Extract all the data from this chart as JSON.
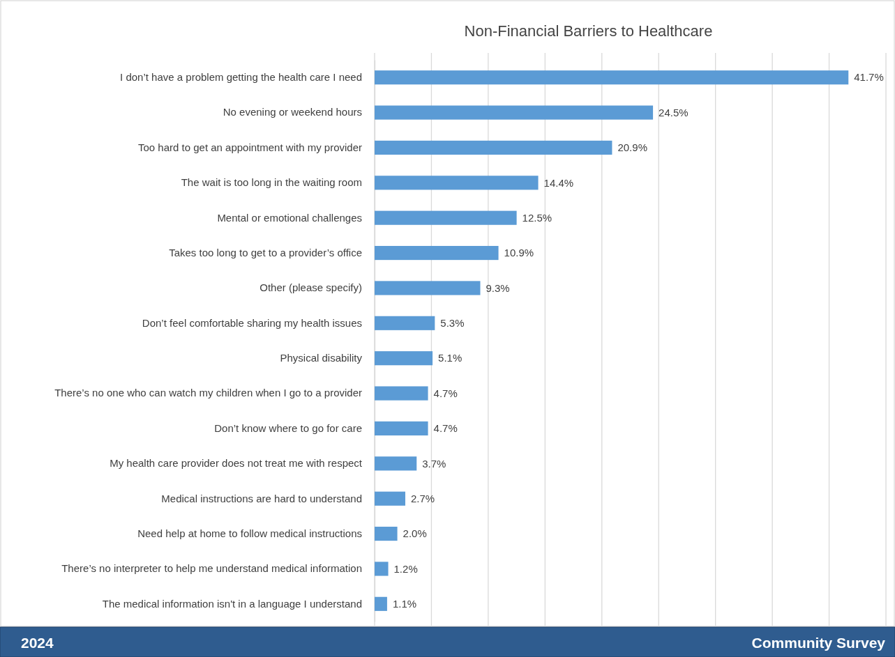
{
  "chart_data": {
    "type": "bar",
    "orientation": "horizontal",
    "title": "Non-Financial Barriers to Healthcare",
    "categories": [
      "I don’t have a problem getting the health care I need",
      "No evening or weekend hours",
      "Too hard to get an appointment with my provider",
      "The wait is too long in the waiting room",
      "Mental or emotional challenges",
      "Takes too long to get to a provider’s office",
      "Other (please specify)",
      "Don’t feel comfortable sharing my health issues",
      "Physical disability",
      "There’s no one who can watch my children when I go to a provider",
      "Don’t know where to go for care",
      "My health care provider does not treat me with respect",
      "Medical instructions are hard to understand",
      "Need help at home to follow medical instructions",
      "There’s no interpreter to help me understand medical information",
      "The medical information isn't in a language I understand"
    ],
    "values": [
      41.7,
      24.5,
      20.9,
      14.4,
      12.5,
      10.9,
      9.3,
      5.3,
      5.1,
      4.7,
      4.7,
      3.7,
      2.7,
      2.0,
      1.2,
      1.1
    ],
    "value_labels": [
      "41.7%",
      "24.5%",
      "20.9%",
      "14.4%",
      "12.5%",
      "10.9%",
      "9.3%",
      "5.3%",
      "5.1%",
      "4.7%",
      "4.7%",
      "3.7%",
      "2.7%",
      "2.0%",
      "1.2%",
      "1.1%"
    ],
    "color": "#5b9bd5",
    "xlim": [
      0,
      45
    ],
    "xticks": [
      {
        "value": 0,
        "label": null
      },
      {
        "value": 5,
        "label": null
      },
      {
        "value": 10,
        "label": null
      },
      {
        "value": 15,
        "label": null
      },
      {
        "value": 20,
        "label": null
      },
      {
        "value": 25,
        "label": null
      },
      {
        "value": 30,
        "label": null
      },
      {
        "value": 35,
        "label": null
      },
      {
        "value": 40,
        "label": null
      },
      {
        "value": 45,
        "label": null
      }
    ],
    "grid": "x",
    "tick_labels": "y",
    "annotations": [
      "2024",
      "Community Survey"
    ]
  }
}
